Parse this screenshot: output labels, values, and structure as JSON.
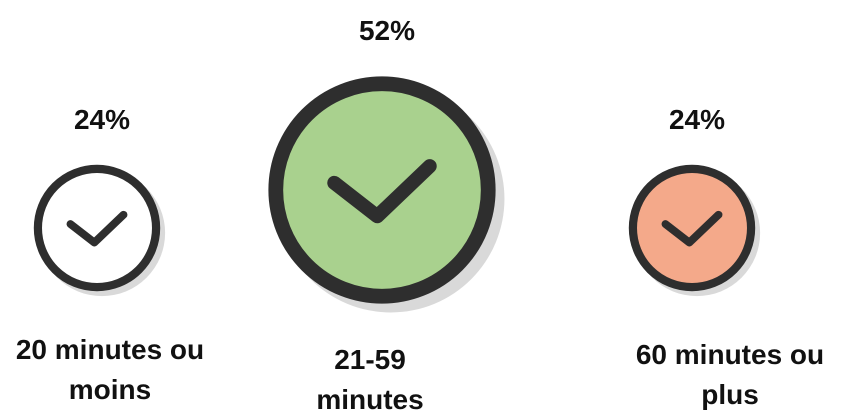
{
  "chart_data": {
    "type": "pictograph",
    "categories": [
      "20 minutes ou moins",
      "21-59 minutes",
      "60 minutes ou plus"
    ],
    "values": [
      24,
      52,
      24
    ],
    "value_labels": [
      "24%",
      "52%",
      "24%"
    ],
    "colors": [
      "#ffffff",
      "#a9d18e",
      "#f4a98a"
    ]
  }
}
